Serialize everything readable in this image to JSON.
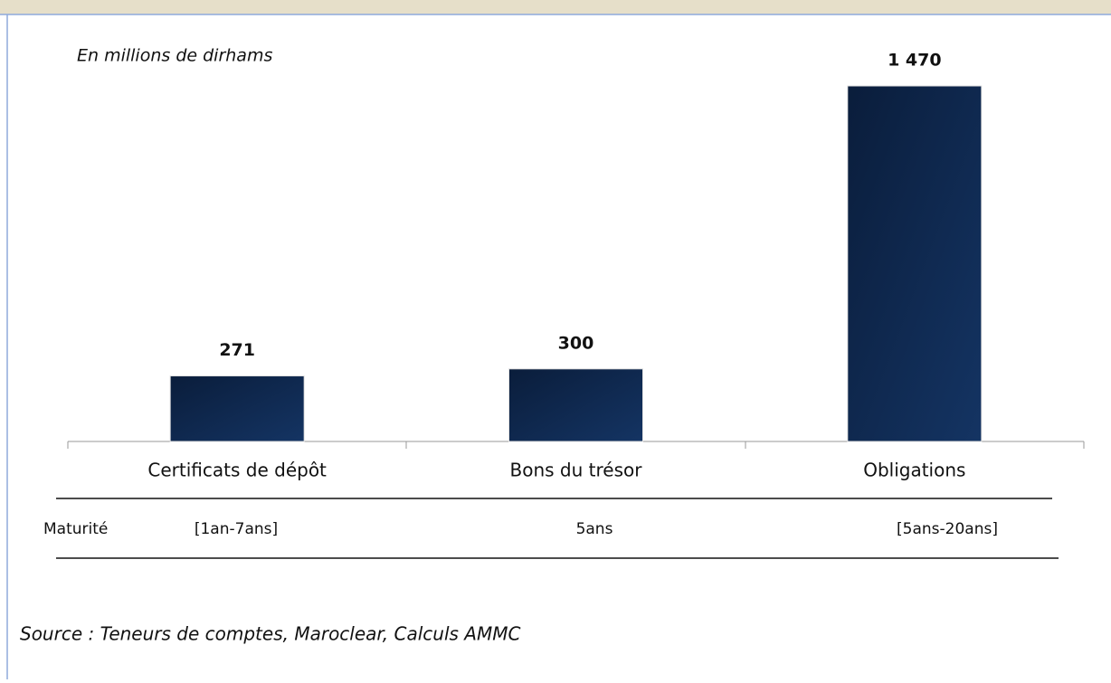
{
  "chart_data": {
    "type": "bar",
    "subtitle": "En millions de dirhams",
    "categories": [
      "Certificats de dépôt",
      "Bons du trésor",
      "Obligations"
    ],
    "values": [
      271,
      300,
      1470
    ],
    "value_labels": [
      "271",
      "300",
      "1 470"
    ],
    "color": "#0f2a52",
    "maturity_label": "Maturité",
    "maturities": [
      "[1an-7ans]",
      "5ans",
      "[5ans-20ans]"
    ],
    "source": "Source : Teneurs de comptes, Maroclear, Calculs AMMC"
  }
}
